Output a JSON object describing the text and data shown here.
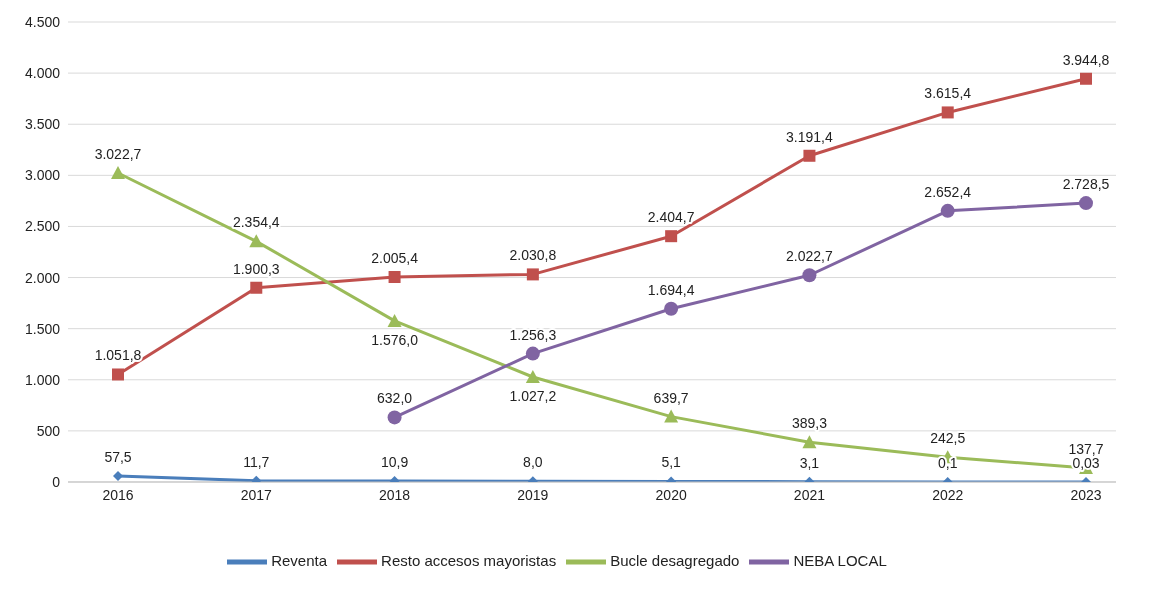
{
  "chart_data": {
    "type": "line",
    "categories": [
      "2016",
      "2017",
      "2018",
      "2019",
      "2020",
      "2021",
      "2022",
      "2023"
    ],
    "ylim": [
      0,
      4500
    ],
    "yticks": [
      {
        "value": 0,
        "label": "0"
      },
      {
        "value": 500,
        "label": "500"
      },
      {
        "value": 1000,
        "label": "1.000"
      },
      {
        "value": 1500,
        "label": "1.500"
      },
      {
        "value": 2000,
        "label": "2.000"
      },
      {
        "value": 2500,
        "label": "2.500"
      },
      {
        "value": 3000,
        "label": "3.000"
      },
      {
        "value": 3500,
        "label": "3.500"
      },
      {
        "value": 4000,
        "label": "4.000"
      },
      {
        "value": 4500,
        "label": "4.500"
      }
    ],
    "grid": "y",
    "legend": "bottom",
    "line_style": "solid",
    "series": [
      {
        "name": "Reventa",
        "color": "#4a7ebb",
        "marker": "diamond",
        "values": [
          57.5,
          11.7,
          10.9,
          8.0,
          5.1,
          3.1,
          0.1,
          0.03
        ],
        "value_labels": [
          "57,5",
          "11,7",
          "10,9",
          "8,0",
          "5,1",
          "3,1",
          "0,1",
          "0,03"
        ]
      },
      {
        "name": "Resto accesos mayoristas",
        "color": "#c0504d",
        "marker": "square",
        "values": [
          1051.8,
          1900.3,
          2005.4,
          2030.8,
          2404.7,
          3191.4,
          3615.4,
          3944.8
        ],
        "value_labels": [
          "1.051,8",
          "1.900,3",
          "2.005,4",
          "2.030,8",
          "2.404,7",
          "3.191,4",
          "3.615,4",
          "3.944,8"
        ]
      },
      {
        "name": "Bucle desagregado",
        "color": "#9bbb59",
        "marker": "triangle",
        "values": [
          3022.7,
          2354.4,
          1576.0,
          1027.2,
          639.7,
          389.3,
          242.5,
          137.7
        ],
        "value_labels": [
          "3.022,7",
          "2.354,4",
          "1.576,0",
          "1.027,2",
          "639,7",
          "389,3",
          "242,5",
          "137,7"
        ]
      },
      {
        "name": "NEBA LOCAL",
        "color": "#8064a2",
        "marker": "circle",
        "values": [
          null,
          null,
          632.0,
          1256.3,
          1694.4,
          2022.7,
          2652.4,
          2728.5
        ],
        "value_labels": [
          null,
          null,
          "632,0",
          "1.256,3",
          "1.694,4",
          "2.022,7",
          "2.652,4",
          "2.728,5"
        ]
      }
    ]
  }
}
